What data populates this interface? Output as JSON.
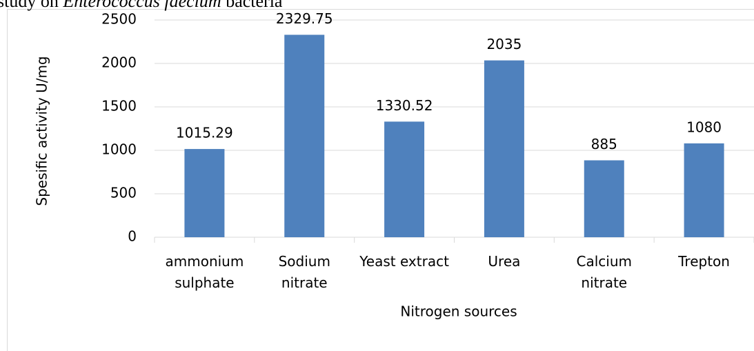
{
  "caption": [
    "study on ",
    "Enterococcus faecium",
    " bacteria"
  ],
  "chart_data": {
    "type": "bar",
    "categories": [
      [
        "ammonium",
        "sulphate"
      ],
      [
        "Sodium",
        "nitrate"
      ],
      [
        "Yeast extract"
      ],
      [
        "Urea"
      ],
      [
        "Calcium",
        "nitrate"
      ],
      [
        "Trepton"
      ]
    ],
    "values": [
      1015.29,
      2329.75,
      1330.52,
      2035,
      885,
      1080
    ],
    "color": "#4f81bd",
    "xlabel": "Nitrogen sources",
    "ylabel": "Spesific activity U/mg",
    "ylim": [
      0,
      2500
    ],
    "yticks": [
      0,
      500,
      1000,
      1500,
      2000,
      2500
    ],
    "grid": true
  }
}
